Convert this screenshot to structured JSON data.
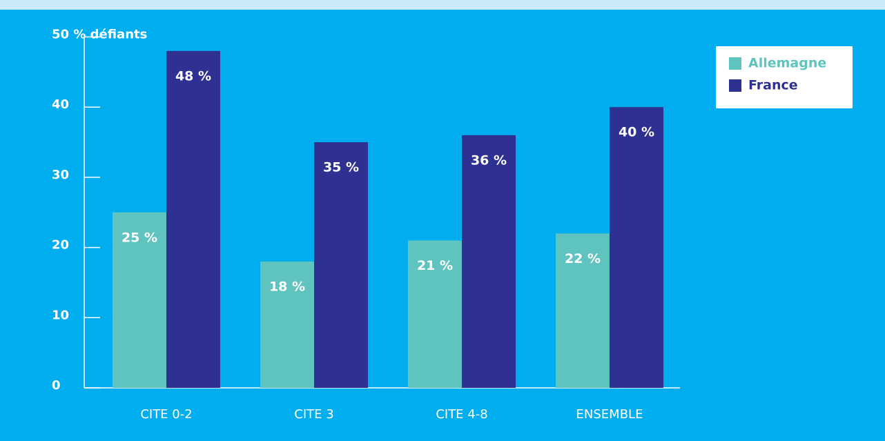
{
  "chart_data": {
    "type": "bar",
    "categories": [
      "CITE 0-2",
      "CITE 3",
      "CITE 4-8",
      "ENSEMBLE"
    ],
    "series": [
      {
        "name": "Allemagne",
        "color": "#5fc4bf",
        "values": [
          25,
          18,
          21,
          22
        ],
        "value_labels": [
          "25 %",
          "18 %",
          "21 %",
          "22 %"
        ]
      },
      {
        "name": "France",
        "color": "#2e3192",
        "values": [
          48,
          35,
          36,
          40
        ],
        "value_labels": [
          "48 %",
          "35 %",
          "36 %",
          "40 %"
        ]
      }
    ],
    "ylim": [
      0,
      50
    ],
    "yticks": [
      0,
      10,
      20,
      30,
      40,
      {
        "value": 50,
        "label": "50 % défiants"
      }
    ],
    "legend": "upper right"
  }
}
